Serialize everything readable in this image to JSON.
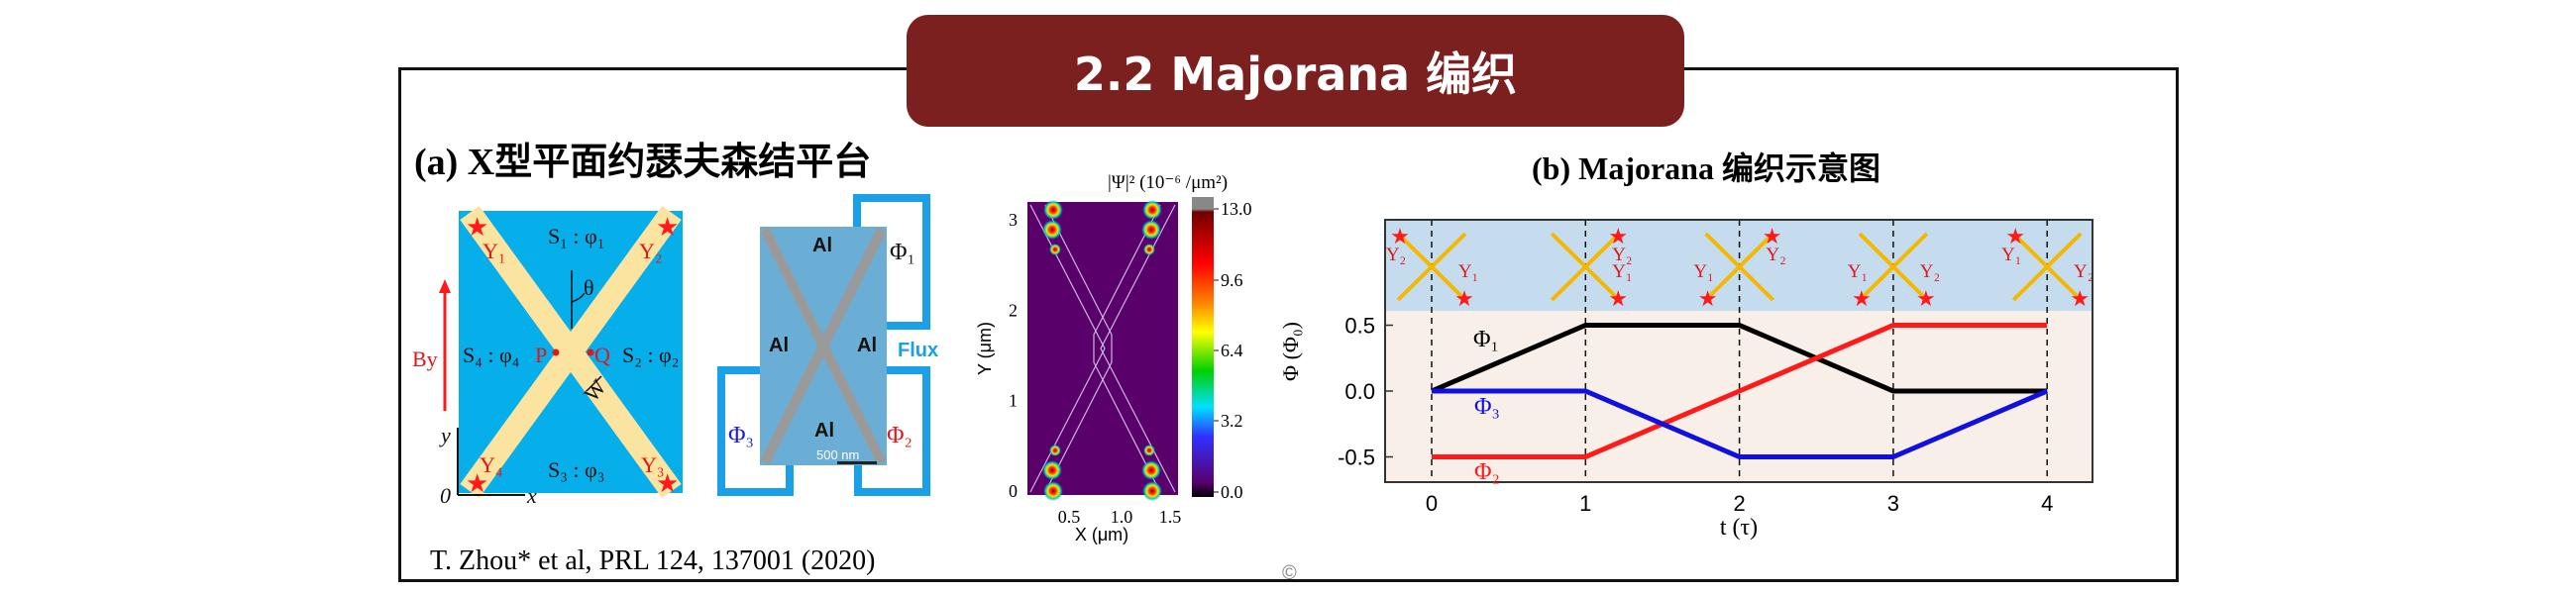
{
  "slide_title": "2.2 Majorana 编织",
  "panel_a": {
    "title": "(a) X型平面约瑟夫森结平台",
    "schematic": {
      "regions": [
        "S₁ : φ₁",
        "S₂ : φ₂",
        "S₃ : φ₃",
        "S₄ : φ₄"
      ],
      "majoranas": [
        "Υ₁",
        "Υ₂",
        "Υ₃",
        "Υ₄"
      ],
      "points": [
        "P",
        "Q"
      ],
      "angle": "θ",
      "width": "W",
      "field": "By",
      "axis_x": "x",
      "axis_y": "y",
      "origin": "0"
    },
    "device": {
      "al_labels": [
        "Al",
        "Al",
        "Al",
        "Al"
      ],
      "fluxes": [
        "Φ₁",
        "Φ₂",
        "Φ₃"
      ],
      "flux_label": "Flux",
      "scale_bar": "500 nm"
    },
    "density_map": {
      "colorbar_title": "|Ψ|² (10⁻⁶ /μm²)",
      "colorbar_ticks": [
        "13.0",
        "9.6",
        "6.4",
        "3.2",
        "0.0"
      ],
      "ylabel": "Y (μm)",
      "xlabel": "X (μm)",
      "yticks": [
        "0",
        "1",
        "2",
        "3"
      ],
      "xticks": [
        "0.5",
        "1.0",
        "1.5"
      ]
    },
    "citation": "T. Zhou* et al, PRL 124, 137001 (2020)"
  },
  "panel_b": {
    "title": "(b) Majorana 编织示意图"
  },
  "chart_data": {
    "type": "line",
    "title": "(b) Majorana 编织示意图",
    "xlabel": "t (τ)",
    "ylabel": "Φ (Φ₀)",
    "x": [
      0,
      1,
      2,
      3,
      4
    ],
    "xticks": [
      "0",
      "1",
      "2",
      "3",
      "4"
    ],
    "yticks": [
      "0.5",
      "0.0",
      "-0.5"
    ],
    "xlim": [
      -0.3,
      4.3
    ],
    "ylim": [
      -0.7,
      0.6
    ],
    "series": [
      {
        "name": "Φ₁",
        "color": "#000000",
        "values": [
          0,
          0.5,
          0.5,
          0,
          0
        ]
      },
      {
        "name": "Φ₂",
        "color": "#ff1a1a",
        "values": [
          -0.5,
          -0.5,
          0,
          0.5,
          0.5
        ]
      },
      {
        "name": "Φ₃",
        "color": "#1010e0",
        "values": [
          0,
          0,
          -0.5,
          -0.5,
          0
        ]
      }
    ],
    "braiding_states": [
      {
        "t": 0,
        "majoranas": [
          {
            "label": "Υ₂",
            "corner": "top-left"
          },
          {
            "label": "Υ₁",
            "corner": "bottom-right"
          }
        ]
      },
      {
        "t": 1,
        "majoranas": [
          {
            "label": "Υ₂",
            "corner": "top-right"
          },
          {
            "label": "Υ₁",
            "corner": "bottom-right"
          }
        ]
      },
      {
        "t": 2,
        "majoranas": [
          {
            "label": "Υ₁",
            "corner": "bottom-left"
          },
          {
            "label": "Υ₂",
            "corner": "top-right"
          }
        ]
      },
      {
        "t": 3,
        "majoranas": [
          {
            "label": "Υ₁",
            "corner": "bottom-left"
          },
          {
            "label": "Υ₂",
            "corner": "bottom-right"
          }
        ]
      },
      {
        "t": 4,
        "majoranas": [
          {
            "label": "Υ₁",
            "corner": "top-left"
          },
          {
            "label": "Υ₂",
            "corner": "bottom-right"
          }
        ]
      }
    ]
  },
  "colors": {
    "title_bg": "#7b1f1f",
    "schematic_blue": "#06aeea",
    "stripe": "#fbe3a0",
    "band_blue": "#c5dcef",
    "band_beige": "#f8efe8"
  }
}
